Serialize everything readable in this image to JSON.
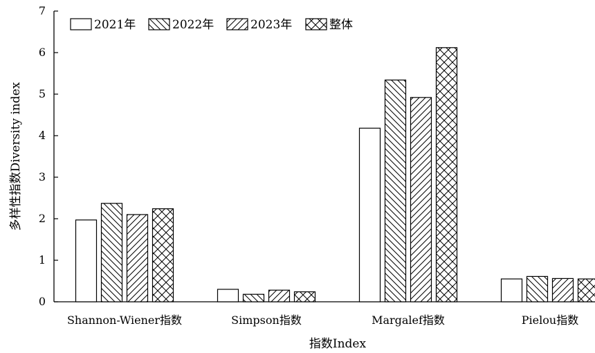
{
  "chart_data": {
    "type": "bar",
    "title": "",
    "xlabel": "指数Index",
    "ylabel": "多样性指数Diversity index",
    "categories": [
      "Shannon-Wiener指数",
      "Simpson指数",
      "Margalef指数",
      "Pielou指数"
    ],
    "ylim": [
      0,
      7
    ],
    "yticks": [
      0,
      1,
      2,
      3,
      4,
      5,
      6,
      7
    ],
    "grid": false,
    "legend_position": "top-left",
    "series": [
      {
        "name": "2021年",
        "pattern": "none",
        "values": [
          1.97,
          0.3,
          4.18,
          0.55
        ]
      },
      {
        "name": "2022年",
        "pattern": "backslash-hatch",
        "values": [
          2.37,
          0.18,
          5.34,
          0.61
        ]
      },
      {
        "name": "2023年",
        "pattern": "slash-hatch",
        "values": [
          2.1,
          0.28,
          4.92,
          0.56
        ]
      },
      {
        "name": "整体",
        "pattern": "cross-hatch",
        "values": [
          2.24,
          0.24,
          6.12,
          0.55
        ]
      }
    ]
  }
}
